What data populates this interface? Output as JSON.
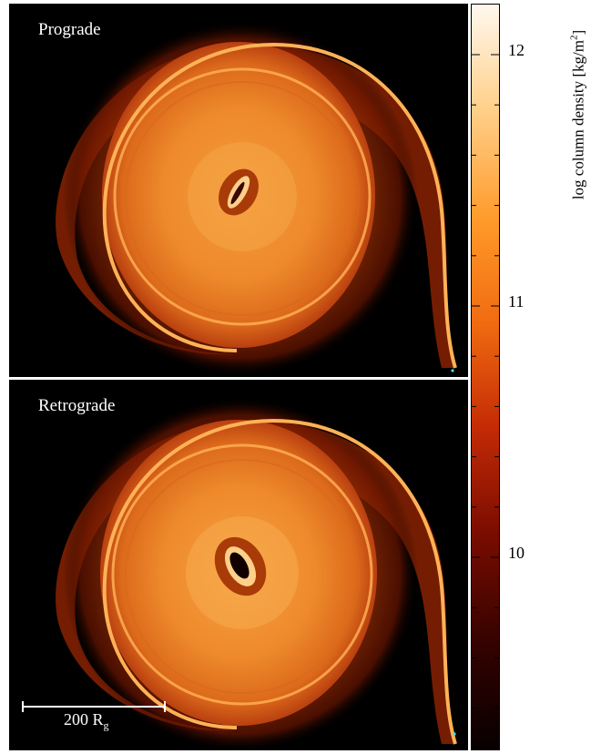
{
  "panels": [
    {
      "label": "Prograde"
    },
    {
      "label": "Retrograde"
    }
  ],
  "scalebar": {
    "label_main": "200 R",
    "label_sub": "g"
  },
  "colorbar": {
    "title_prefix": "log column density [kg/m",
    "title_sup": "2",
    "title_suffix": "]",
    "tick_labels": [
      "12",
      "11",
      "10"
    ],
    "colors": [
      "#fff8ee",
      "#ffd08a",
      "#ff9a2a",
      "#f06a10",
      "#c32a05",
      "#7a0c00",
      "#330200",
      "#070000"
    ]
  },
  "marker_color": "#3ee6e6"
}
